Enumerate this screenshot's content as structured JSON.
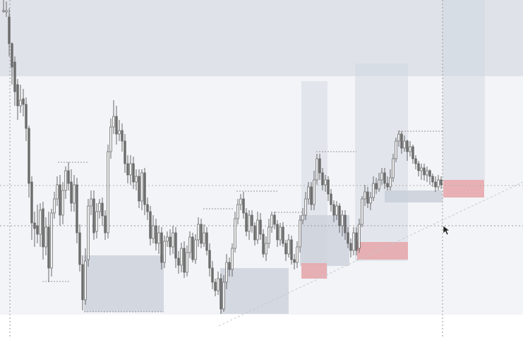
{
  "chart_data": {
    "type": "candlestick",
    "title": "",
    "xlabel": "",
    "ylabel": "",
    "grid": false,
    "legend": "none",
    "colors": {
      "background": "#ffffff",
      "upper_zone": "#dde1e8",
      "mid_zone": "#f3f4f7",
      "demand_zone": "#c9cfd9",
      "supply_zone": "#e7a8ad",
      "candle_bull_body": "#f6f6f6",
      "candle_bear_body": "#6e6e6e",
      "wick": "#5a5a5a",
      "dotted_line": "#9a9a9a"
    },
    "price_range": [
      0,
      478
    ],
    "candles": [
      [
        5,
        16,
        15,
        0,
        18
      ],
      [
        9,
        17,
        15,
        2,
        24
      ],
      [
        13,
        24,
        62,
        12,
        80
      ],
      [
        17,
        62,
        95,
        60,
        120
      ],
      [
        21,
        88,
        130,
        80,
        150
      ],
      [
        25,
        120,
        150,
        112,
        170
      ],
      [
        29,
        150,
        142,
        120,
        160
      ],
      [
        33,
        140,
        148,
        126,
        165
      ],
      [
        37,
        148,
        182,
        138,
        200
      ],
      [
        41,
        182,
        260,
        178,
        280
      ],
      [
        45,
        258,
        316,
        250,
        340
      ],
      [
        49,
        316,
        324,
        300,
        350
      ],
      [
        53,
        320,
        332,
        290,
        345
      ],
      [
        57,
        332,
        298,
        288,
        350
      ],
      [
        61,
        296,
        350,
        286,
        368
      ],
      [
        65,
        350,
        322,
        308,
        362
      ],
      [
        69,
        322,
        380,
        300,
        400
      ],
      [
        73,
        380,
        302,
        296,
        392
      ],
      [
        77,
        302,
        282,
        272,
        310
      ],
      [
        81,
        282,
        262,
        250,
        292
      ],
      [
        85,
        262,
        305,
        248,
        320
      ],
      [
        89,
        305,
        270,
        258,
        318
      ],
      [
        93,
        270,
        242,
        236,
        282
      ],
      [
        97,
        242,
        260,
        230,
        270
      ],
      [
        101,
        258,
        288,
        240,
        300
      ],
      [
        105,
        288,
        262,
        248,
        300
      ],
      [
        109,
        262,
        330,
        252,
        345
      ],
      [
        113,
        330,
        375,
        318,
        385
      ],
      [
        117,
        375,
        425,
        362,
        440
      ],
      [
        121,
        425,
        370,
        352,
        432
      ],
      [
        125,
        368,
        292,
        282,
        378
      ],
      [
        129,
        292,
        282,
        270,
        305
      ],
      [
        133,
        282,
        330,
        270,
        340
      ],
      [
        137,
        328,
        300,
        288,
        338
      ],
      [
        141,
        300,
        288,
        282,
        310
      ],
      [
        145,
        288,
        306,
        280,
        320
      ],
      [
        149,
        306,
        330,
        298,
        340
      ],
      [
        153,
        330,
        215,
        205,
        338
      ],
      [
        157,
        215,
        180,
        168,
        225
      ],
      [
        161,
        180,
        165,
        142,
        190
      ],
      [
        165,
        165,
        190,
        150,
        205
      ],
      [
        169,
        190,
        185,
        170,
        200
      ],
      [
        173,
        185,
        200,
        175,
        215
      ],
      [
        177,
        200,
        232,
        190,
        245
      ],
      [
        181,
        232,
        248,
        220,
        260
      ],
      [
        185,
        248,
        232,
        220,
        262
      ],
      [
        189,
        232,
        258,
        222,
        268
      ],
      [
        193,
        258,
        250,
        240,
        270
      ],
      [
        197,
        250,
        285,
        240,
        295
      ],
      [
        201,
        285,
        245,
        240,
        298
      ],
      [
        205,
        245,
        290,
        238,
        305
      ],
      [
        209,
        290,
        300,
        280,
        312
      ],
      [
        213,
        300,
        338,
        292,
        348
      ],
      [
        217,
        338,
        320,
        305,
        345
      ],
      [
        221,
        320,
        345,
        310,
        355
      ],
      [
        225,
        345,
        330,
        320,
        360
      ],
      [
        229,
        330,
        372,
        322,
        382
      ],
      [
        233,
        372,
        342,
        334,
        380
      ],
      [
        237,
        342,
        336,
        328,
        350
      ],
      [
        241,
        336,
        350,
        325,
        362
      ],
      [
        245,
        350,
        330,
        320,
        360
      ],
      [
        249,
        330,
        366,
        322,
        380
      ],
      [
        253,
        366,
        376,
        356,
        388
      ],
      [
        257,
        376,
        352,
        344,
        386
      ],
      [
        261,
        352,
        386,
        342,
        394
      ],
      [
        265,
        386,
        358,
        348,
        392
      ],
      [
        269,
        358,
        336,
        328,
        366
      ],
      [
        273,
        336,
        368,
        330,
        372
      ],
      [
        277,
        368,
        340,
        332,
        374
      ],
      [
        281,
        340,
        318,
        308,
        350
      ],
      [
        285,
        318,
        345,
        310,
        352
      ],
      [
        289,
        345,
        330,
        318,
        350
      ],
      [
        293,
        330,
        355,
        322,
        362
      ],
      [
        297,
        355,
        380,
        345,
        392
      ],
      [
        301,
        380,
        400,
        370,
        410
      ],
      [
        305,
        400,
        412,
        395,
        420
      ],
      [
        309,
        412,
        395,
        385,
        418
      ],
      [
        313,
        395,
        438,
        388,
        445
      ],
      [
        317,
        438,
        400,
        390,
        442
      ],
      [
        321,
        400,
        372,
        360,
        410
      ],
      [
        325,
        372,
        382,
        365,
        392
      ],
      [
        329,
        382,
        352,
        345,
        392
      ],
      [
        333,
        352,
        310,
        300,
        358
      ],
      [
        337,
        310,
        290,
        282,
        318
      ],
      [
        341,
        290,
        282,
        275,
        298
      ],
      [
        345,
        282,
        302,
        272,
        310
      ],
      [
        349,
        302,
        328,
        295,
        335
      ],
      [
        353,
        328,
        305,
        298,
        340
      ],
      [
        357,
        305,
        320,
        298,
        330
      ],
      [
        361,
        320,
        340,
        315,
        348
      ],
      [
        365,
        340,
        312,
        300,
        346
      ],
      [
        369,
        312,
        332,
        302,
        340
      ],
      [
        373,
        332,
        360,
        325,
        365
      ],
      [
        377,
        360,
        345,
        335,
        370
      ],
      [
        381,
        345,
        322,
        310,
        352
      ],
      [
        385,
        322,
        305,
        300,
        330
      ],
      [
        389,
        305,
        318,
        300,
        325
      ],
      [
        393,
        318,
        340,
        312,
        350
      ],
      [
        397,
        340,
        322,
        316,
        348
      ],
      [
        401,
        322,
        345,
        315,
        350
      ],
      [
        405,
        345,
        360,
        340,
        370
      ],
      [
        409,
        360,
        340,
        332,
        365
      ],
      [
        413,
        340,
        368,
        334,
        375
      ],
      [
        417,
        368,
        372,
        360,
        382
      ],
      [
        421,
        372,
        350,
        342,
        380
      ],
      [
        425,
        350,
        312,
        305,
        358
      ],
      [
        429,
        312,
        305,
        295,
        318
      ],
      [
        433,
        305,
        282,
        272,
        312
      ],
      [
        437,
        282,
        265,
        258,
        290
      ],
      [
        441,
        265,
        290,
        258,
        298
      ],
      [
        445,
        290,
        255,
        242,
        298
      ],
      [
        449,
        255,
        225,
        218,
        262
      ],
      [
        453,
        225,
        245,
        218,
        255
      ],
      [
        457,
        245,
        262,
        238,
        270
      ],
      [
        461,
        262,
        255,
        248,
        272
      ],
      [
        465,
        255,
        275,
        250,
        285
      ],
      [
        469,
        275,
        290,
        268,
        300
      ],
      [
        473,
        290,
        305,
        284,
        315
      ],
      [
        477,
        305,
        292,
        285,
        312
      ],
      [
        481,
        292,
        320,
        288,
        330
      ],
      [
        485,
        320,
        305,
        298,
        335
      ],
      [
        489,
        305,
        330,
        298,
        340
      ],
      [
        493,
        330,
        345,
        322,
        352
      ],
      [
        497,
        345,
        355,
        338,
        365
      ],
      [
        501,
        355,
        330,
        322,
        362
      ],
      [
        505,
        330,
        355,
        322,
        362
      ],
      [
        509,
        352,
        318,
        310,
        358
      ],
      [
        513,
        318,
        282,
        278,
        322
      ],
      [
        517,
        282,
        272,
        262,
        292
      ],
      [
        521,
        272,
        288,
        265,
        295
      ],
      [
        525,
        288,
        280,
        272,
        298
      ],
      [
        529,
        280,
        260,
        250,
        285
      ],
      [
        533,
        260,
        268,
        252,
        275
      ],
      [
        537,
        268,
        255,
        245,
        272
      ],
      [
        541,
        255,
        245,
        238,
        262
      ],
      [
        545,
        245,
        260,
        238,
        268
      ],
      [
        549,
        260,
        265,
        250,
        270
      ],
      [
        553,
        265,
        252,
        240,
        270
      ],
      [
        557,
        252,
        225,
        218,
        258
      ],
      [
        561,
        225,
        200,
        195,
        230
      ],
      [
        565,
        200,
        190,
        185,
        208
      ],
      [
        569,
        190,
        210,
        186,
        218
      ],
      [
        573,
        210,
        200,
        192,
        215
      ],
      [
        577,
        200,
        215,
        198,
        228
      ],
      [
        581,
        215,
        208,
        200,
        222
      ],
      [
        585,
        208,
        225,
        205,
        232
      ],
      [
        589,
        225,
        232,
        220,
        240
      ],
      [
        593,
        232,
        242,
        228,
        250
      ],
      [
        597,
        242,
        238,
        232,
        255
      ],
      [
        601,
        238,
        248,
        232,
        256
      ],
      [
        605,
        248,
        242,
        236,
        258
      ],
      [
        609,
        242,
        250,
        240,
        262
      ],
      [
        613,
        250,
        258,
        246,
        265
      ],
      [
        617,
        258,
        265,
        250,
        272
      ],
      [
        621,
        265,
        255,
        248,
        270
      ],
      [
        625,
        255,
        262,
        250,
        268
      ]
    ]
  }
}
